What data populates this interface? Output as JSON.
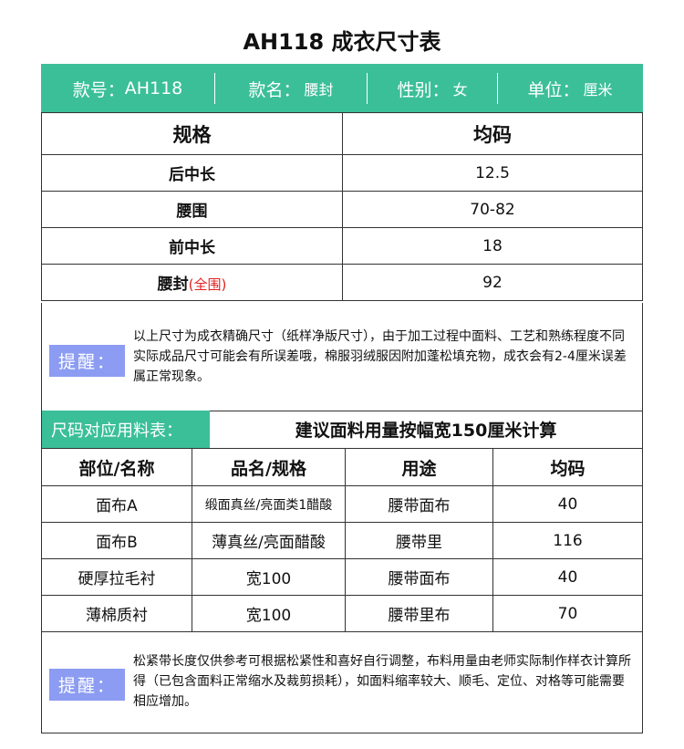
{
  "title": "AH118 成衣尺寸表",
  "header": {
    "style_no_label": "款号：",
    "style_no": "AH118",
    "name_label": "款名：",
    "name": "腰封",
    "gender_label": "性别：",
    "gender": "女",
    "unit_label": "单位：",
    "unit": "厘米"
  },
  "size_table": {
    "col_spec": "规格",
    "col_size": "均码",
    "rows": [
      {
        "label": "后中长",
        "note": "",
        "value": "12.5"
      },
      {
        "label": "腰围",
        "note": "",
        "value": "70-82"
      },
      {
        "label": "前中长",
        "note": "",
        "value": "18"
      },
      {
        "label": "腰封",
        "note": "(全围)",
        "value": "92"
      }
    ]
  },
  "note1": {
    "tag": "提醒：",
    "text": "以上尺寸为成衣精确尺寸（纸样净版尺寸），由于加工过程中面料、工艺和熟练程度不同实际成品尺寸可能会有所误差哦，棉服羽绒服因附加蓬松填充物，成衣会有2-4厘米误差属正常现象。"
  },
  "material": {
    "section_label": "尺码对应用料表：",
    "section_note": "建议面料用量按幅宽150厘米计算",
    "headers": [
      "部位/名称",
      "品名/规格",
      "用途",
      "均码"
    ],
    "rows": [
      [
        "面布A",
        "缎面真丝/亮面类1醋酸",
        "腰带面布",
        "40"
      ],
      [
        "面布B",
        "薄真丝/亮面醋酸",
        "腰带里",
        "116"
      ],
      [
        "硬厚拉毛衬",
        "宽100",
        "腰带面布",
        "40"
      ],
      [
        "薄棉质衬",
        "宽100",
        "腰带里布",
        "70"
      ]
    ]
  },
  "note2": {
    "tag": "提醒：",
    "text": "松紧带长度仅供参考可根据松紧性和喜好自行调整，布料用量由老师实际制作样衣计算所得（已包含面料正常缩水及裁剪损耗），如面料缩率较大、顺毛、定位、对格等可能需要相应增加。"
  },
  "colors": {
    "green": "#3bbf99",
    "tag": "#8c9cf2",
    "red": "#e02020"
  }
}
